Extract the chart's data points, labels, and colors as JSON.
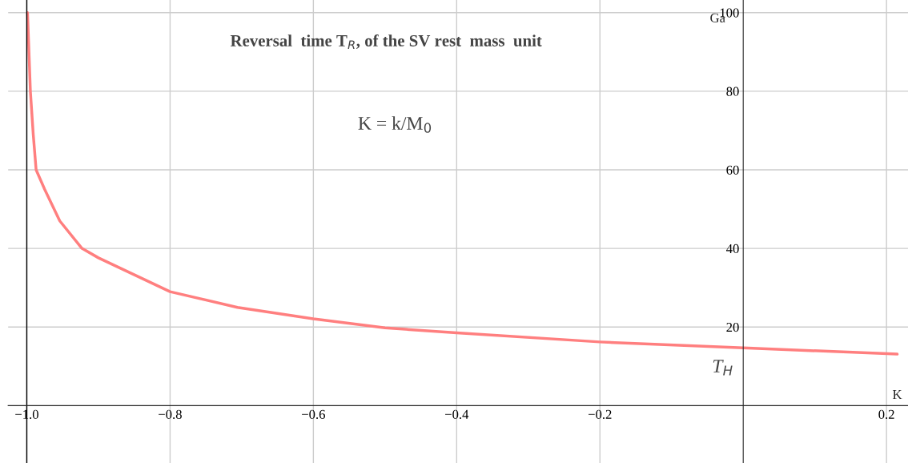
{
  "chart_data": {
    "type": "line",
    "title": "Reversal  time T$_{R}$, of the SV rest  mass  unit",
    "xlabel": "K",
    "ylabel": "Ga",
    "annotations": [
      "K = k/M$_{0}$",
      {
        "text": "T$_{H}$",
        "x": 0,
        "y": 14.7
      }
    ],
    "x": [
      -0.999,
      -0.995,
      -0.991,
      -0.987,
      -0.975,
      -0.954,
      -0.923,
      -0.9,
      -0.8,
      -0.706,
      -0.6,
      -0.5,
      -0.4,
      -0.2,
      0,
      0.215
    ],
    "series": [
      {
        "color": "#ff7f7f",
        "values": [
          100,
          80,
          69,
          60,
          55,
          47,
          40,
          37.6,
          29,
          25,
          22.1,
          19.8,
          18.5,
          16.2,
          14.7,
          13.1
        ]
      }
    ],
    "xlim": [
      -1.026,
      0.23
    ],
    "ylim": [
      -14.6,
      103.2
    ],
    "xticks": [
      {
        "value": -1.0,
        "label": "−1.0"
      },
      {
        "value": -0.8,
        "label": "−0.8"
      },
      {
        "value": -0.6,
        "label": "−0.6"
      },
      {
        "value": -0.4,
        "label": "−0.4"
      },
      {
        "value": -0.2,
        "label": "−0.2"
      },
      {
        "value": 0.2,
        "label": "0.2"
      }
    ],
    "yticks": [
      20,
      40,
      60,
      80,
      100
    ],
    "ref_lines": [
      {
        "axis": "x",
        "value": -1,
        "color": "#000000"
      }
    ],
    "grid": true,
    "marker": "none",
    "line_style": "solid"
  }
}
